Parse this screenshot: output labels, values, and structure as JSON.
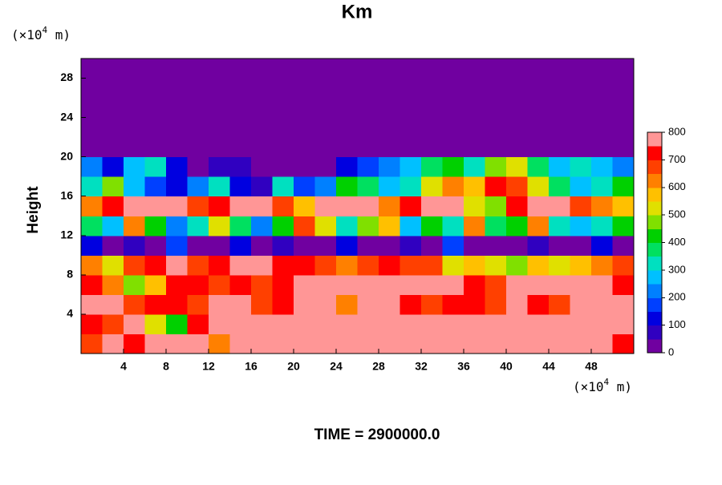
{
  "chart_data": {
    "type": "heatmap",
    "title": "Km",
    "x_unit": {
      "base": "(×10",
      "exp": "4",
      "tail": " m)"
    },
    "y_unit": {
      "base": "(×10",
      "exp": "4",
      "tail": " m)"
    },
    "y_label": "Height",
    "footer": "TIME = 2900000.0",
    "xbins": [
      0,
      2,
      4,
      6,
      8,
      10,
      12,
      14,
      16,
      18,
      20,
      22,
      24,
      26,
      28,
      30,
      32,
      34,
      36,
      38,
      40,
      42,
      44,
      46,
      48,
      50,
      52
    ],
    "ybins": [
      0,
      2,
      4,
      6,
      8,
      10,
      12,
      14,
      16,
      18,
      20,
      22,
      24,
      26,
      28,
      30
    ],
    "xlim": [
      0,
      52
    ],
    "ylim": [
      0,
      30
    ],
    "xticks": [
      4,
      8,
      12,
      16,
      20,
      24,
      28,
      32,
      36,
      40,
      44,
      48
    ],
    "yticks": [
      4,
      8,
      12,
      16,
      20,
      24,
      28
    ],
    "z": [
      [
        650,
        800,
        700,
        750,
        800,
        800,
        600,
        800,
        800,
        800,
        800,
        800,
        800,
        800,
        800,
        800,
        800,
        800,
        800,
        800,
        800,
        800,
        800,
        800,
        750,
        700
      ],
      [
        700,
        650,
        750,
        500,
        400,
        700,
        800,
        800,
        800,
        800,
        800,
        750,
        800,
        800,
        800,
        800,
        800,
        800,
        800,
        800,
        800,
        800,
        800,
        800,
        800,
        800
      ],
      [
        800,
        750,
        650,
        700,
        700,
        650,
        750,
        800,
        650,
        700,
        800,
        800,
        600,
        800,
        750,
        700,
        650,
        700,
        700,
        650,
        800,
        700,
        650,
        800,
        800,
        800
      ],
      [
        700,
        600,
        450,
        550,
        700,
        700,
        650,
        700,
        650,
        700,
        800,
        800,
        800,
        800,
        800,
        800,
        800,
        750,
        700,
        650,
        800,
        800,
        800,
        800,
        750,
        700
      ],
      [
        600,
        500,
        650,
        700,
        750,
        650,
        700,
        750,
        750,
        700,
        700,
        650,
        600,
        650,
        700,
        650,
        650,
        500,
        550,
        500,
        450,
        550,
        500,
        550,
        600,
        650
      ],
      [
        100,
        0,
        50,
        0,
        150,
        0,
        0,
        100,
        0,
        50,
        0,
        0,
        100,
        0,
        0,
        50,
        0,
        150,
        0,
        0,
        0,
        50,
        0,
        0,
        100,
        0
      ],
      [
        350,
        250,
        600,
        400,
        200,
        300,
        500,
        350,
        200,
        400,
        650,
        500,
        300,
        450,
        550,
        250,
        400,
        300,
        600,
        350,
        400,
        600,
        300,
        250,
        300,
        400
      ],
      [
        600,
        700,
        800,
        800,
        750,
        650,
        700,
        800,
        800,
        650,
        550,
        800,
        800,
        750,
        600,
        700,
        800,
        800,
        500,
        450,
        700,
        800,
        750,
        650,
        600,
        550
      ],
      [
        300,
        450,
        250,
        150,
        100,
        200,
        300,
        100,
        50,
        300,
        150,
        200,
        400,
        350,
        250,
        300,
        500,
        600,
        550,
        700,
        650,
        500,
        350,
        250,
        300,
        400
      ],
      [
        200,
        100,
        250,
        300,
        100,
        0,
        50,
        50,
        0,
        0,
        0,
        0,
        100,
        150,
        200,
        250,
        350,
        400,
        300,
        450,
        500,
        350,
        250,
        300,
        250,
        200
      ],
      [
        0,
        0,
        0,
        0,
        0,
        0,
        0,
        0,
        0,
        0,
        0,
        0,
        0,
        0,
        0,
        0,
        0,
        0,
        0,
        0,
        0,
        0,
        0,
        0,
        0,
        0
      ],
      [
        0,
        0,
        0,
        0,
        0,
        0,
        0,
        0,
        0,
        0,
        0,
        0,
        0,
        0,
        0,
        0,
        0,
        0,
        0,
        0,
        0,
        0,
        0,
        0,
        0,
        0
      ],
      [
        0,
        0,
        0,
        0,
        0,
        0,
        0,
        0,
        0,
        0,
        0,
        0,
        0,
        0,
        0,
        0,
        0,
        0,
        0,
        0,
        0,
        0,
        0,
        0,
        0,
        0
      ],
      [
        0,
        0,
        0,
        0,
        0,
        0,
        0,
        0,
        0,
        0,
        0,
        0,
        0,
        0,
        0,
        0,
        0,
        0,
        0,
        0,
        0,
        0,
        0,
        0,
        0,
        0
      ],
      [
        0,
        0,
        0,
        0,
        0,
        0,
        0,
        0,
        0,
        0,
        0,
        0,
        0,
        0,
        0,
        0,
        0,
        0,
        0,
        0,
        0,
        0,
        0,
        0,
        0,
        0
      ]
    ],
    "colorbar": {
      "clim": [
        0,
        800
      ],
      "ticks": [
        0,
        100,
        200,
        300,
        400,
        500,
        600,
        700,
        800
      ],
      "colors": [
        "#7000a0",
        "#3000c0",
        "#0000e0",
        "#0040ff",
        "#0080ff",
        "#00c0ff",
        "#00e0c0",
        "#00e060",
        "#00d000",
        "#80e000",
        "#e0e000",
        "#ffc000",
        "#ff8000",
        "#ff4000",
        "#ff0000",
        "#ff9696"
      ]
    }
  }
}
